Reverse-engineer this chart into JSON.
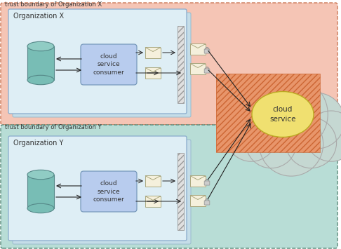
{
  "trust_x_label": "trust boundary of Organization X",
  "trust_y_label": "trust boundary of Organization Y",
  "org_x_label": "Organization X",
  "org_y_label": "Organization Y",
  "cloud_service_label": "cloud\nservice",
  "consumer_label": "cloud\nservice\nconsumer",
  "trust_x_color": "#f5c5b5",
  "trust_y_color": "#b8ddd6",
  "org_x_inner_color": "#deeef5",
  "org_y_inner_color": "#deeef5",
  "overlap_hatch_color": "#e8956a",
  "cloud_bg_color": "#c5d8d2",
  "cloud_service_circle_color": "#f0e070",
  "consumer_box_color": "#b8ccee",
  "cylinder_color_top": "#90ccC4",
  "cylinder_color_body": "#78bdb5",
  "arrow_color": "#222222",
  "envelope_color": "#f5f0dc",
  "envelope_edge": "#aaa880",
  "lock_color": "#bbbbbb",
  "wall_color": "#e0e0e0",
  "wall_edge": "#999999",
  "cloud_edge": "#aaaaaa",
  "hatch_pattern": "////",
  "box3d_back_color": "#c5dde8",
  "box3d_front_color": "#ddeef8"
}
